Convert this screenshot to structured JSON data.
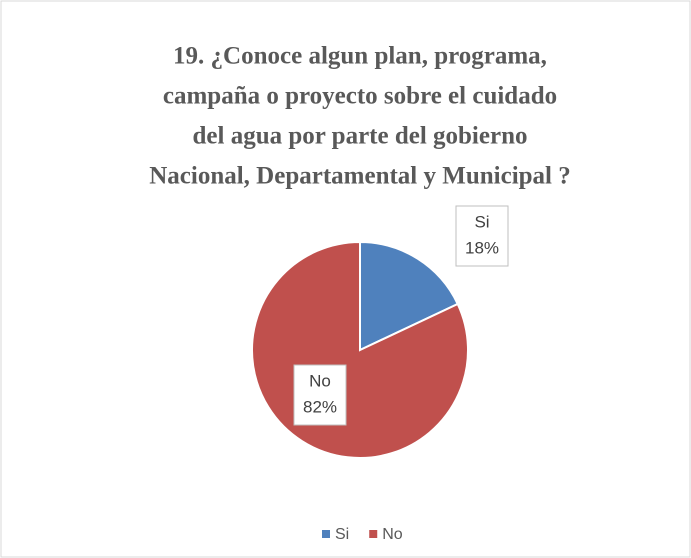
{
  "chart_data": {
    "type": "pie",
    "title": [
      "19. ¿Conoce algun plan, programa,",
      "campaña o proyecto sobre el cuidado",
      "del agua por parte del gobierno",
      "Nacional, Departamental y Municipal ?"
    ],
    "categories": [
      "Si",
      "No"
    ],
    "values": [
      18,
      82
    ],
    "value_labels": [
      "18%",
      "82%"
    ],
    "colors": [
      "#4f81bd",
      "#c0504d"
    ],
    "legend": "bottom"
  }
}
